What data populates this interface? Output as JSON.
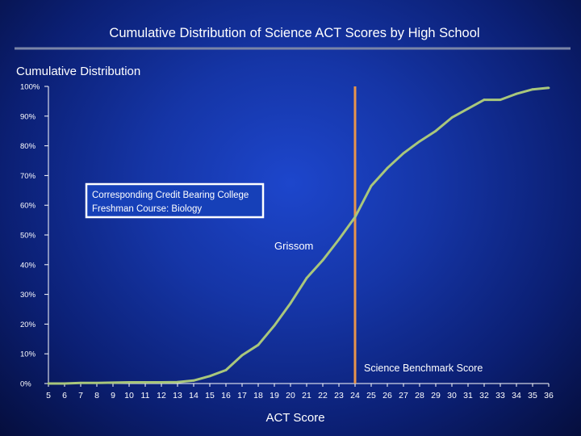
{
  "chart_data": {
    "type": "line",
    "title": "Cumulative Distribution of Science ACT Scores by High School",
    "ylabel": "Cumulative Distribution",
    "xlabel": "ACT Score",
    "x": [
      5,
      6,
      7,
      8,
      9,
      10,
      11,
      12,
      13,
      14,
      15,
      16,
      17,
      18,
      19,
      20,
      21,
      22,
      23,
      24,
      25,
      26,
      27,
      28,
      29,
      30,
      31,
      32,
      33,
      34,
      35,
      36
    ],
    "x_tick_labels": [
      "5",
      "6",
      "7",
      "8",
      "9",
      "10",
      "11",
      "12",
      "13",
      "14",
      "15",
      "16",
      "17",
      "18",
      "19",
      "20",
      "21",
      "22",
      "23",
      "24",
      "25",
      "26",
      "27",
      "28",
      "29",
      "30",
      "31",
      "32",
      "33",
      "34",
      "35",
      "36"
    ],
    "y_ticks": [
      0,
      10,
      20,
      30,
      40,
      50,
      60,
      70,
      80,
      90,
      100
    ],
    "y_tick_labels": [
      "0%",
      "10%",
      "20%",
      "30%",
      "40%",
      "50%",
      "60%",
      "70%",
      "80%",
      "90%",
      "100%"
    ],
    "ylim": [
      0,
      100
    ],
    "grid": false,
    "series": [
      {
        "name": "Grissom",
        "color": "#a9c77c",
        "values": [
          0,
          0,
          0.2,
          0.2,
          0.3,
          0.4,
          0.4,
          0.4,
          0.5,
          1,
          2.5,
          4.5,
          9.5,
          13,
          19.5,
          27,
          35.5,
          41.5,
          48.5,
          56,
          66.5,
          72.5,
          77.5,
          81.5,
          85,
          89.5,
          92.5,
          95.5,
          95.5,
          97.5,
          99,
          99.5
        ]
      }
    ],
    "benchmark": {
      "label": "Science Benchmark Score",
      "x": 24,
      "color": "#e8944b"
    },
    "callout": {
      "lines": [
        "Corresponding Credit Bearing College",
        "Freshman Course: Biology"
      ]
    }
  }
}
